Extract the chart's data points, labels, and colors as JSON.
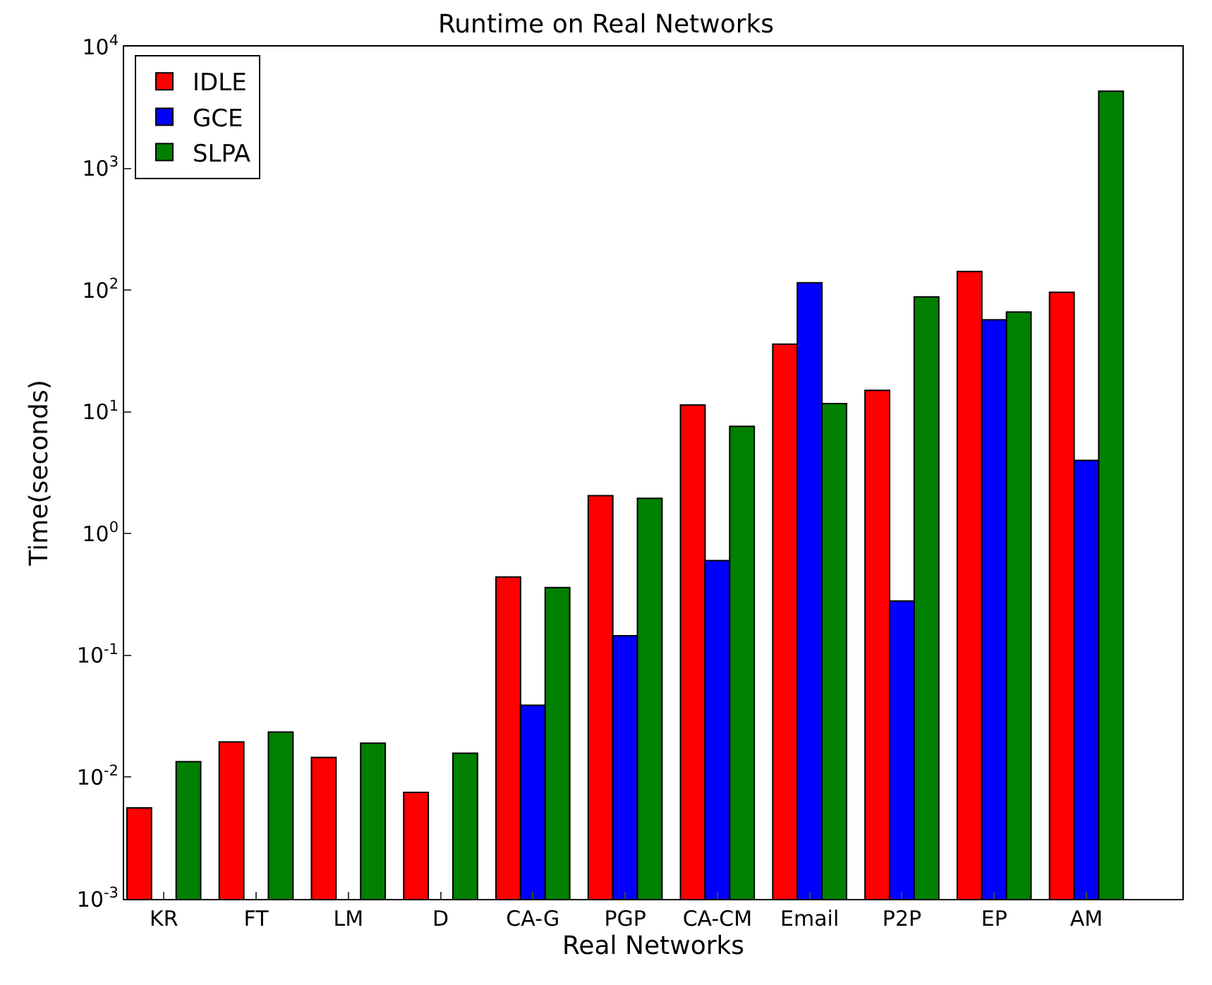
{
  "chart_data": {
    "type": "bar",
    "title": "Runtime on Real Networks",
    "xlabel": "Real Networks",
    "ylabel": "Time(seconds)",
    "categories": [
      "KR",
      "FT",
      "LM",
      "D",
      "CA-G",
      "PGP",
      "CA-CM",
      "Email",
      "P2P",
      "EP",
      "AM"
    ],
    "series": [
      {
        "name": "IDLE",
        "color": "#ff0000",
        "values": [
          0.0056,
          0.0195,
          0.0145,
          0.0075,
          0.44,
          2.05,
          11.4,
          36,
          15,
          142,
          96
        ]
      },
      {
        "name": "GCE",
        "color": "#0000ff",
        "values": [
          null,
          null,
          null,
          null,
          0.039,
          0.145,
          0.6,
          115,
          0.28,
          57,
          4
        ]
      },
      {
        "name": "SLPA",
        "color": "#008000",
        "values": [
          0.0134,
          0.0235,
          0.019,
          0.0157,
          0.36,
          1.95,
          7.6,
          11.7,
          88,
          66,
          4300
        ]
      }
    ],
    "log": "y",
    "ylim": [
      0.001,
      10000
    ],
    "yticks": [
      {
        "value": 0.001,
        "label": "10$^{-3}$"
      },
      {
        "value": 0.01,
        "label": "10$^{-2}$"
      },
      {
        "value": 0.1,
        "label": "10$^{-1}$"
      },
      {
        "value": 1,
        "label": "10$^{0}$"
      },
      {
        "value": 10,
        "label": "10$^{1}$"
      },
      {
        "value": 100,
        "label": "10$^{2}$"
      },
      {
        "value": 1000,
        "label": "10$^{3}$"
      },
      {
        "value": 10000,
        "label": "10$^{4}$"
      }
    ],
    "legend": "top left"
  }
}
